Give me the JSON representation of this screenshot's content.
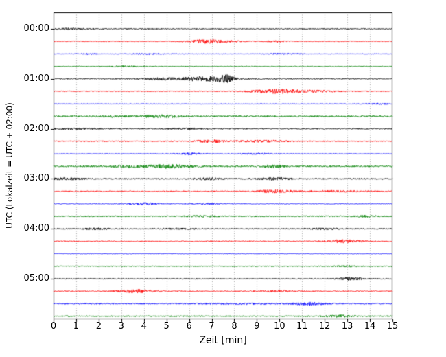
{
  "figure": {
    "xlabel": "Zeit  [min]",
    "ylabel": "UTC (Lokalzeit = UTC + 02:00)"
  },
  "chart_data": {
    "type": "line",
    "subtype": "seismogram-drum-plot",
    "title": "",
    "xlabel": "Zeit  [min]",
    "ylabel": "UTC (Lokalzeit = UTC + 02:00)",
    "xlim": [
      0,
      15
    ],
    "xticks": [
      0,
      1,
      2,
      3,
      4,
      5,
      6,
      7,
      8,
      9,
      10,
      11,
      12,
      13,
      14,
      15
    ],
    "grid": "vertical-dotted",
    "grid_color": "#aaaaaa",
    "row_spacing_minutes": 15,
    "colors": {
      "black": "#000000",
      "red": "#ff0000",
      "blue": "#0000ff",
      "green": "#008000"
    },
    "yticks": [
      {
        "row": 0,
        "label": "00:00"
      },
      {
        "row": 4,
        "label": "01:00"
      },
      {
        "row": 8,
        "label": "02:00"
      },
      {
        "row": 12,
        "label": "03:00"
      },
      {
        "row": 16,
        "label": "04:00"
      },
      {
        "row": 20,
        "label": "05:00"
      }
    ],
    "amplitude_note": "noise = background half-amplitude (px); bursts = gaussian events {t:center min, w:sigma min, a:half-amplitude px}",
    "traces": [
      {
        "time": "00:00",
        "color": "#000000",
        "noise": 0.7,
        "bursts": [
          {
            "t": 0.7,
            "w": 0.6,
            "a": 0.8
          }
        ]
      },
      {
        "time": "00:15",
        "color": "#ff0000",
        "noise": 0.6,
        "bursts": [
          {
            "t": 6.9,
            "w": 0.7,
            "a": 2.8
          },
          {
            "t": 9.8,
            "w": 0.4,
            "a": 0.9
          }
        ]
      },
      {
        "time": "00:30",
        "color": "#0000ff",
        "noise": 0.5,
        "bursts": [
          {
            "t": 1.6,
            "w": 0.3,
            "a": 0.7
          },
          {
            "t": 4.2,
            "w": 0.5,
            "a": 0.7
          },
          {
            "t": 10.2,
            "w": 0.6,
            "a": 0.7
          }
        ]
      },
      {
        "time": "00:45",
        "color": "#008000",
        "noise": 0.6,
        "bursts": [
          {
            "t": 3.2,
            "w": 0.5,
            "a": 0.7
          }
        ]
      },
      {
        "time": "01:00",
        "color": "#000000",
        "noise": 0.7,
        "bursts": [
          {
            "t": 4.6,
            "w": 0.5,
            "a": 1.4
          },
          {
            "t": 6.7,
            "w": 0.9,
            "a": 3.2
          },
          {
            "t": 7.6,
            "w": 0.25,
            "a": 4.2
          }
        ]
      },
      {
        "time": "01:15",
        "color": "#ff0000",
        "noise": 0.7,
        "bursts": [
          {
            "t": 9.9,
            "w": 0.8,
            "a": 3.0
          },
          {
            "t": 11.6,
            "w": 0.7,
            "a": 1.1
          }
        ]
      },
      {
        "time": "01:30",
        "color": "#0000ff",
        "noise": 0.5,
        "bursts": [
          {
            "t": 14.4,
            "w": 0.4,
            "a": 0.9
          }
        ]
      },
      {
        "time": "01:45",
        "color": "#008000",
        "noise": 1.1,
        "bursts": [
          {
            "t": 2.6,
            "w": 0.5,
            "a": 0.9
          },
          {
            "t": 4.7,
            "w": 0.6,
            "a": 2.0
          }
        ]
      },
      {
        "time": "02:00",
        "color": "#000000",
        "noise": 0.8,
        "bursts": [
          {
            "t": 1.0,
            "w": 0.7,
            "a": 0.8
          },
          {
            "t": 5.8,
            "w": 0.5,
            "a": 0.8
          }
        ]
      },
      {
        "time": "02:15",
        "color": "#ff0000",
        "noise": 0.8,
        "bursts": [
          {
            "t": 7.0,
            "w": 0.5,
            "a": 1.6
          },
          {
            "t": 9.3,
            "w": 0.7,
            "a": 1.3
          }
        ]
      },
      {
        "time": "02:30",
        "color": "#0000ff",
        "noise": 0.5,
        "bursts": [
          {
            "t": 6.0,
            "w": 0.4,
            "a": 1.3
          },
          {
            "t": 9.0,
            "w": 0.5,
            "a": 0.9
          }
        ]
      },
      {
        "time": "02:45",
        "color": "#008000",
        "noise": 1.1,
        "bursts": [
          {
            "t": 3.2,
            "w": 0.4,
            "a": 1.5
          },
          {
            "t": 5.0,
            "w": 0.7,
            "a": 2.2
          },
          {
            "t": 9.7,
            "w": 0.35,
            "a": 1.6
          }
        ]
      },
      {
        "time": "03:00",
        "color": "#000000",
        "noise": 0.9,
        "bursts": [
          {
            "t": 0.5,
            "w": 0.5,
            "a": 1.3
          },
          {
            "t": 6.9,
            "w": 0.4,
            "a": 1.3
          },
          {
            "t": 9.8,
            "w": 0.5,
            "a": 1.6
          }
        ]
      },
      {
        "time": "03:15",
        "color": "#ff0000",
        "noise": 0.8,
        "bursts": [
          {
            "t": 9.9,
            "w": 0.6,
            "a": 1.8
          },
          {
            "t": 12.5,
            "w": 0.8,
            "a": 0.9
          }
        ]
      },
      {
        "time": "03:30",
        "color": "#0000ff",
        "noise": 0.5,
        "bursts": [
          {
            "t": 4.0,
            "w": 0.45,
            "a": 1.6
          },
          {
            "t": 6.9,
            "w": 0.5,
            "a": 0.9
          }
        ]
      },
      {
        "time": "03:45",
        "color": "#008000",
        "noise": 0.9,
        "bursts": [
          {
            "t": 6.6,
            "w": 0.5,
            "a": 1.0
          },
          {
            "t": 13.8,
            "w": 0.35,
            "a": 1.1
          }
        ]
      },
      {
        "time": "04:00",
        "color": "#000000",
        "noise": 0.8,
        "bursts": [
          {
            "t": 1.9,
            "w": 0.4,
            "a": 1.0
          },
          {
            "t": 5.6,
            "w": 0.5,
            "a": 0.9
          },
          {
            "t": 12.0,
            "w": 0.5,
            "a": 0.9
          }
        ]
      },
      {
        "time": "04:15",
        "color": "#ff0000",
        "noise": 0.7,
        "bursts": [
          {
            "t": 12.9,
            "w": 0.6,
            "a": 2.0
          }
        ]
      },
      {
        "time": "04:30",
        "color": "#0000ff",
        "noise": 0.45,
        "bursts": []
      },
      {
        "time": "04:45",
        "color": "#008000",
        "noise": 0.7,
        "bursts": [
          {
            "t": 13.0,
            "w": 0.4,
            "a": 0.9
          }
        ]
      },
      {
        "time": "05:00",
        "color": "#000000",
        "noise": 0.7,
        "bursts": [
          {
            "t": 13.1,
            "w": 0.4,
            "a": 2.0
          }
        ]
      },
      {
        "time": "05:15",
        "color": "#ff0000",
        "noise": 0.7,
        "bursts": [
          {
            "t": 3.7,
            "w": 0.6,
            "a": 2.2
          },
          {
            "t": 10.0,
            "w": 0.5,
            "a": 0.9
          }
        ]
      },
      {
        "time": "05:30",
        "color": "#0000ff",
        "noise": 0.9,
        "bursts": [
          {
            "t": 8.0,
            "w": 1.2,
            "a": 0.6
          },
          {
            "t": 11.3,
            "w": 0.5,
            "a": 1.8
          }
        ]
      },
      {
        "time": "05:45",
        "color": "#008000",
        "noise": 0.9,
        "bursts": [
          {
            "t": 12.6,
            "w": 0.4,
            "a": 1.6
          }
        ]
      }
    ]
  }
}
